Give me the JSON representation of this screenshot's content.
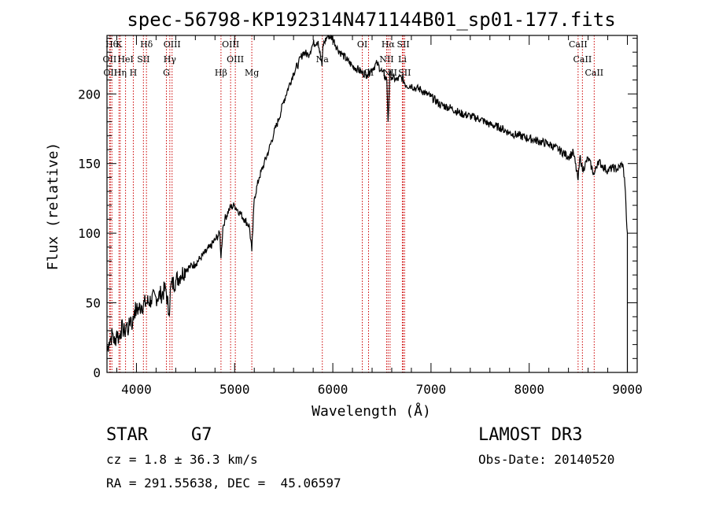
{
  "chart_data": {
    "type": "line",
    "title": "spec-56798-KP192314N471144B01_sp01-177.fits",
    "xlabel": "Wavelength (Å)",
    "ylabel": "Flux (relative)",
    "xlim": [
      3700,
      9100
    ],
    "ylim": [
      0,
      242
    ],
    "xticks": [
      4000,
      5000,
      6000,
      7000,
      8000,
      9000
    ],
    "yticks": [
      0,
      50,
      100,
      150,
      200
    ],
    "grid": false,
    "series": [
      {
        "name": "spectrum",
        "x": [
          3700,
          3720,
          3740,
          3760,
          3780,
          3800,
          3820,
          3840,
          3860,
          3880,
          3900,
          3920,
          3940,
          3960,
          3980,
          4000,
          4050,
          4100,
          4150,
          4200,
          4250,
          4300,
          4330,
          4350,
          4400,
          4450,
          4500,
          4550,
          4600,
          4650,
          4700,
          4750,
          4800,
          4850,
          4861,
          4880,
          4900,
          4950,
          5000,
          5050,
          5100,
          5150,
          5175,
          5200,
          5250,
          5300,
          5350,
          5400,
          5450,
          5500,
          5550,
          5600,
          5650,
          5700,
          5750,
          5800,
          5850,
          5890,
          5900,
          5950,
          6000,
          6050,
          6100,
          6150,
          6200,
          6250,
          6300,
          6350,
          6400,
          6450,
          6500,
          6550,
          6563,
          6580,
          6600,
          6650,
          6700,
          6750,
          6800,
          6850,
          6900,
          6950,
          7000,
          7100,
          7200,
          7300,
          7400,
          7500,
          7600,
          7700,
          7800,
          7900,
          8000,
          8100,
          8200,
          8300,
          8400,
          8450,
          8498,
          8520,
          8542,
          8600,
          8662,
          8700,
          8750,
          8800,
          8850,
          8900,
          8950,
          8970,
          8980,
          8990,
          9000
        ],
        "y": [
          15,
          22,
          25,
          28,
          20,
          30,
          24,
          30,
          32,
          28,
          35,
          30,
          40,
          34,
          45,
          44,
          48,
          50,
          52,
          54,
          56,
          60,
          42,
          62,
          66,
          70,
          74,
          76,
          78,
          82,
          86,
          90,
          95,
          100,
          82,
          104,
          110,
          118,
          120,
          115,
          110,
          105,
          87,
          125,
          140,
          150,
          160,
          172,
          182,
          195,
          205,
          215,
          222,
          230,
          228,
          236,
          238,
          220,
          235,
          242,
          240,
          232,
          228,
          224,
          220,
          218,
          215,
          214,
          218,
          222,
          216,
          210,
          180,
          215,
          212,
          210,
          212,
          206,
          206,
          204,
          203,
          200,
          198,
          192,
          190,
          186,
          184,
          182,
          178,
          176,
          172,
          170,
          168,
          166,
          164,
          160,
          155,
          158,
          138,
          156,
          145,
          154,
          142,
          152,
          148,
          145,
          147,
          146,
          150,
          140,
          130,
          110,
          100
        ]
      }
    ],
    "lines": [
      {
        "wave": 3750,
        "label": "Hθ",
        "row": 0
      },
      {
        "wave": 3822,
        "label": "K",
        "row": 0
      },
      {
        "wave": 4102,
        "label": "Hδ",
        "row": 0
      },
      {
        "wave": 4363,
        "label": "OIII",
        "row": 0
      },
      {
        "wave": 4959,
        "label": "OIII",
        "row": 0
      },
      {
        "wave": 6300,
        "label": "OI",
        "row": 0
      },
      {
        "wave": 6563,
        "label": "Hα",
        "row": 0
      },
      {
        "wave": 6717,
        "label": "SII",
        "row": 0
      },
      {
        "wave": 8498,
        "label": "CaII",
        "row": 0
      },
      {
        "wave": 3727,
        "label": "OII",
        "row": 1
      },
      {
        "wave": 3889,
        "label": "HeI",
        "row": 1
      },
      {
        "wave": 4071,
        "label": "SII",
        "row": 1
      },
      {
        "wave": 4340,
        "label": "Hγ",
        "row": 1
      },
      {
        "wave": 5007,
        "label": "OIII",
        "row": 1
      },
      {
        "wave": 5893,
        "label": "Na",
        "row": 1
      },
      {
        "wave": 6548,
        "label": "NII",
        "row": 1
      },
      {
        "wave": 6708,
        "label": "Li",
        "row": 1
      },
      {
        "wave": 8542,
        "label": "CaII",
        "row": 1
      },
      {
        "wave": 3734,
        "label": "OII",
        "row": 2
      },
      {
        "wave": 3835,
        "label": "Hη",
        "row": 2
      },
      {
        "wave": 3968,
        "label": "H",
        "row": 2
      },
      {
        "wave": 4305,
        "label": "G",
        "row": 2
      },
      {
        "wave": 4861,
        "label": "Hβ",
        "row": 2
      },
      {
        "wave": 5175,
        "label": "Mg",
        "row": 2
      },
      {
        "wave": 6364,
        "label": "OI",
        "row": 2
      },
      {
        "wave": 6583,
        "label": "NII",
        "row": 2
      },
      {
        "wave": 6731,
        "label": "SII",
        "row": 2
      },
      {
        "wave": 8662,
        "label": "CaII",
        "row": 2
      }
    ],
    "colors": {
      "spectrum": "#000000",
      "lines": "#cc0000"
    }
  },
  "info": {
    "object_class": "STAR",
    "subclass": "G7",
    "survey": "LAMOST DR3",
    "redshift": "cz = 1.8 ± 36.3 km/s",
    "obs_date": "Obs-Date: 20140520",
    "coords": "RA = 291.55638, DEC =  45.06597"
  }
}
